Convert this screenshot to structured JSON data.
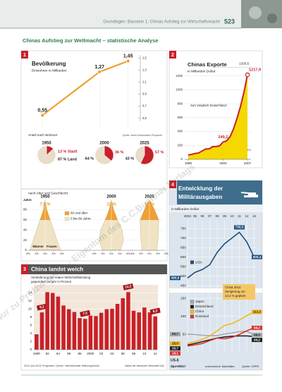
{
  "header": {
    "text": "Grundlagen: Baustein 1: Chinas Aufstieg zur Wirtschaftsmacht",
    "page": "523"
  },
  "title": "Chinas Aufstieg zur Weltmacht – statistische Analyse",
  "panel_numbers": [
    "1",
    "2",
    "3",
    "4"
  ],
  "watermark": "Nur zu Prüfzwecken – Eigentum des C.C.Buchner Verlags",
  "chart_data": [
    {
      "type": "line",
      "title": "Bevölkerung",
      "subtitle": "Einwohner in Milliarden",
      "x": [
        1950,
        2000,
        2025
      ],
      "values": [
        0.55,
        1.27,
        1.45
      ],
      "value_labels": [
        "0,55",
        "1,27",
        "1,45"
      ],
      "color": "#f0a030",
      "xlim": [
        1940,
        2032
      ],
      "ylim": [
        0.45,
        1.55
      ],
      "yticks": [
        {
          "value": 0.5,
          "label": "0,5"
        },
        {
          "value": 0.7,
          "label": "0,7"
        },
        {
          "value": 0.9,
          "label": "0,9"
        },
        {
          "value": 1.1,
          "label": "1,1"
        },
        {
          "value": 1.3,
          "label": "1,3"
        },
        {
          "value": 1.5,
          "label": "1,5"
        }
      ]
    },
    {
      "type": "pie",
      "title": "Anteil nach Wohnort",
      "source": "Quelle: World Urbanization Prospects",
      "categories": [
        "Stadt",
        "Land"
      ],
      "colors": [
        "#c8202a",
        "#e9dcc8"
      ],
      "series": [
        {
          "name": "1950",
          "values": [
            13,
            87
          ],
          "value_labels": [
            "13 %",
            "87 %"
          ]
        },
        {
          "name": "2000",
          "values": [
            36,
            64
          ],
          "value_labels": [
            "36 %",
            "64 %"
          ]
        },
        {
          "name": "2025",
          "values": [
            57,
            43
          ],
          "value_labels": [
            "57 %",
            "43 %"
          ]
        }
      ]
    },
    {
      "type": "area",
      "title": "Chinas Exporte",
      "subtitle": "in Milliarden Dollar",
      "x": [
        1990,
        1991,
        1992,
        1993,
        1994,
        1995,
        1996,
        1997,
        1998,
        1999,
        2000,
        2001,
        2002,
        2003,
        2004,
        2005,
        2006,
        2007
      ],
      "values": [
        62.1,
        71.8,
        84.9,
        91.7,
        121.0,
        148.8,
        151.1,
        182.8,
        183.7,
        194.9,
        249.2,
        266.1,
        325.6,
        438.2,
        593.3,
        762.0,
        969.0,
        1217.9
      ],
      "value_labels": [
        null,
        null,
        null,
        null,
        null,
        null,
        null,
        null,
        null,
        null,
        "249,2",
        null,
        null,
        null,
        null,
        null,
        null,
        "1217,9"
      ],
      "line_color": "#c8202a",
      "fill_color": "#f5d800",
      "xlim": [
        1989,
        2008
      ],
      "ylim": [
        0,
        1400
      ],
      "yticks": [
        0,
        200,
        400,
        600,
        800,
        1000,
        1200
      ],
      "xticks": [
        1990,
        2000,
        2007
      ],
      "grid": true,
      "reference": {
        "label": "zum Vergleich Deutschland:",
        "value": 1326.5,
        "value_label": "1326,5"
      },
      "source": "Quelle: WTO"
    },
    {
      "type": "pyramid",
      "title": "nach Alter und Geschlecht",
      "ylabel": "Jahre",
      "ages": [
        0,
        20,
        40,
        60,
        80,
        100
      ],
      "split_age": 60,
      "ylim": [
        0,
        100
      ],
      "yticks": [
        0,
        20,
        40,
        60,
        80
      ],
      "xlim": [
        -6,
        6
      ],
      "xticks": [
        {
          "value": -6,
          "label": "6%"
        },
        {
          "value": -3,
          "label": "3%"
        },
        {
          "value": 0,
          "label": "0%"
        },
        {
          "value": 3,
          "label": "3%"
        },
        {
          "value": 6,
          "label": "6%"
        }
      ],
      "legend": [
        "60 und älter",
        "0 bis 59 Jahre"
      ],
      "colors": [
        "#f0a030",
        "#efe3c4"
      ],
      "sex_labels": [
        "Männer",
        "Frauen"
      ],
      "series": [
        {
          "name": "1950",
          "values": [
            5.5,
            4.2,
            3,
            1.8,
            0.6,
            0
          ],
          "share_label": "7,5 %"
        },
        {
          "name": "2000",
          "values": [
            3.2,
            4.3,
            3.8,
            2.2,
            0.8,
            0
          ],
          "share_label": "10 %"
        },
        {
          "name": "2025",
          "values": [
            2.6,
            3,
            3.2,
            3.3,
            1.8,
            0
          ],
          "share_label": "30 %"
        }
      ]
    },
    {
      "type": "bar",
      "title": "China landet weich",
      "subtitle": [
        "Veränderung der realen Wirtschaftsleistung",
        "gegenüber Vorjahr in Prozent"
      ],
      "categories": [
        "1990",
        null,
        "92",
        null,
        "94",
        null,
        "96",
        null,
        "98",
        null,
        "2000",
        null,
        "02",
        null,
        "04",
        null,
        "06",
        null,
        "08",
        null,
        "10",
        null,
        "12"
      ],
      "values": [
        3.8,
        9.2,
        14.2,
        14.0,
        13.1,
        10.9,
        10.0,
        9.3,
        7.8,
        7.6,
        8.4,
        8.3,
        9.1,
        10.0,
        10.1,
        11.3,
        12.7,
        14.2,
        9.6,
        9.2,
        10.4,
        9.2,
        8.2
      ],
      "value_labels": [
        null,
        "9,2",
        null,
        null,
        null,
        null,
        null,
        null,
        null,
        "7,6",
        null,
        null,
        null,
        null,
        null,
        null,
        null,
        "14,2",
        null,
        null,
        null,
        null,
        "8,2"
      ],
      "color": "#c8202a",
      "ylim": [
        0,
        16
      ],
      "yticks": [
        0,
        2,
        4,
        6,
        8,
        10,
        12,
        14
      ],
      "grid": true,
      "note": "2012 und 2013: Prognosen; Quelle: Internationaler Währungsfonds",
      "source": "Institut der deutschen Wirtschaft Köln"
    },
    {
      "type": "line",
      "title": [
        "Entwicklung der",
        "Militärausgaben"
      ],
      "subtitle": "in Milliarden Dollar",
      "categories": [
        "2004",
        "05",
        "06",
        "07",
        "08",
        "09",
        "10",
        "11",
        "12",
        "13"
      ],
      "ylim": [
        440,
        780
      ],
      "yticks": [
        450,
        500,
        550,
        600,
        650,
        700,
        750
      ],
      "y2lim": [
        0,
        160
      ],
      "y2ticks": [
        50,
        100,
        150
      ],
      "series": [
        {
          "name": "USA",
          "color": "#1f4e79",
          "values": [
            490.6,
            520,
            535,
            560,
            625,
            670,
            700,
            730.3,
            680,
            600.4
          ],
          "value_labels": [
            "490,6",
            null,
            null,
            null,
            null,
            null,
            null,
            "730,3",
            null,
            "600,4"
          ]
        },
        {
          "name": "Japan",
          "color": "#a8a8a8",
          "axis": "y2",
          "values": [
            50.7,
            50,
            48,
            47,
            47,
            51,
            54,
            58,
            59,
            48.6
          ],
          "value_labels": [
            "50,7",
            null,
            null,
            null,
            null,
            null,
            null,
            null,
            null,
            "48,6"
          ]
        },
        {
          "name": "Deutschland",
          "color": "#222222",
          "axis": "y2",
          "values": [
            20.7,
            25,
            30,
            35,
            40,
            43,
            45,
            46,
            46,
            44.2
          ],
          "value_labels": [
            "20,7",
            null,
            null,
            null,
            null,
            null,
            null,
            null,
            null,
            "44,2"
          ]
        },
        {
          "name": "China",
          "color": "#f0b820",
          "axis": "y2",
          "values": [
            25.0,
            30,
            36,
            46,
            60,
            75,
            80,
            90,
            102,
            112.2
          ],
          "value_labels": [
            "25,0",
            null,
            null,
            null,
            null,
            null,
            null,
            null,
            null,
            "112,2"
          ]
        },
        {
          "name": "Russland",
          "color": "#d9342b",
          "axis": "y2",
          "values": [
            18.1,
            21,
            25,
            33,
            40,
            38,
            42,
            50,
            60,
            68.2
          ],
          "value_labels": [
            "18,1",
            null,
            null,
            null,
            null,
            null,
            null,
            null,
            null,
            "68,2"
          ]
        }
      ],
      "annotation": [
        "China 2014",
        "Steigerung um",
        "12,2 % geplant"
      ],
      "unit": "US-$",
      "footer": [
        "dpa•20617",
        "unterschiedl. Maßstäbe",
        "Quelle: SIPRI"
      ]
    }
  ]
}
